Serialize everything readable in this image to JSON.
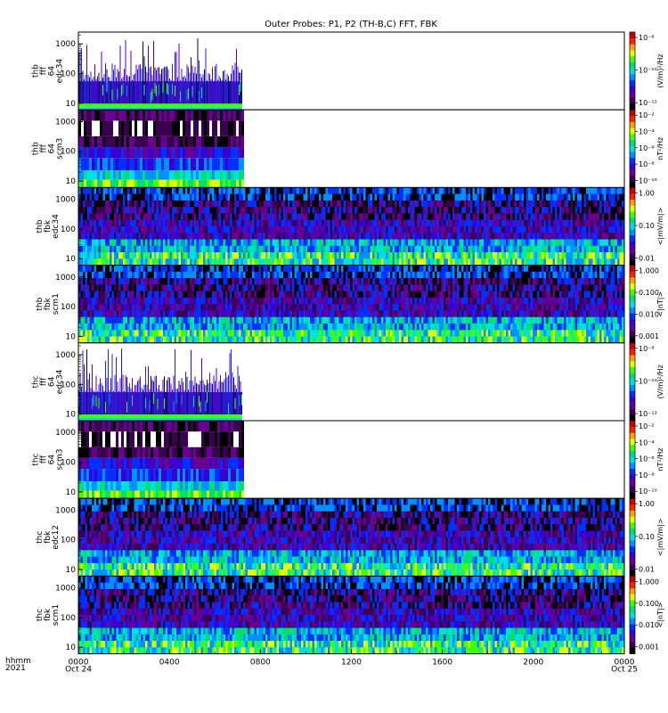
{
  "title": "Outer Probes: P1, P2 (TH-B,C) FFT, FBK",
  "x_axis": {
    "var_label_line1": "hhmm",
    "var_label_line2": "2021",
    "ticks": [
      {
        "hour": 0,
        "label": "0000",
        "sublabel": "Oct 24"
      },
      {
        "hour": 4,
        "label": "0400",
        "sublabel": ""
      },
      {
        "hour": 8,
        "label": "0800",
        "sublabel": ""
      },
      {
        "hour": 12,
        "label": "1200",
        "sublabel": ""
      },
      {
        "hour": 16,
        "label": "1600",
        "sublabel": ""
      },
      {
        "hour": 20,
        "label": "2000",
        "sublabel": ""
      },
      {
        "hour": 24,
        "label": "0000",
        "sublabel": "Oct 25"
      }
    ]
  },
  "colorbar_colors": [
    "#000000",
    "#3c0050",
    "#6a0090",
    "#3a00d0",
    "#0030ff",
    "#0090ff",
    "#00e0e0",
    "#00e070",
    "#40ff00",
    "#e0ff00",
    "#ffa000",
    "#ff2000",
    "#d00000"
  ],
  "chart_data": [
    {
      "type": "heatmap",
      "panel": "thb-fff-64-edc34",
      "ylabel": [
        "thb",
        "fff",
        "64",
        "edc34"
      ],
      "y_scale": "log",
      "y_ticks": [
        "10",
        "100",
        "1000"
      ],
      "x_range_hours": [
        0,
        24
      ],
      "data_end_hour": 7.2,
      "style": "spiky",
      "colorbar_ticks": [
        "10⁻⁸",
        "10⁻¹⁰",
        "10⁻¹²"
      ],
      "colorbar_label": "(V/m)²/Hz"
    },
    {
      "type": "heatmap",
      "panel": "thb-fff-64-scm3",
      "ylabel": [
        "thb",
        "fff",
        "64",
        "scm3"
      ],
      "y_scale": "log",
      "y_ticks": [
        "10",
        "100",
        "1000"
      ],
      "x_range_hours": [
        0,
        24
      ],
      "data_end_hour": 7.2,
      "style": "banded",
      "colorbar_ticks": [
        "10⁻²",
        "10⁻⁴",
        "10⁻⁶",
        "10⁻⁸",
        "10⁻¹⁰"
      ],
      "colorbar_label": "nT²/Hz"
    },
    {
      "type": "heatmap",
      "panel": "thb-fbk-edc34",
      "ylabel": [
        "thb",
        "fbk",
        "edc34"
      ],
      "y_scale": "log",
      "y_ticks": [
        "10",
        "100",
        "1000"
      ],
      "x_range_hours": [
        0,
        24
      ],
      "data_end_hour": 24,
      "style": "fbk",
      "colorbar_ticks": [
        "1.00",
        "0.10",
        "0.01"
      ],
      "colorbar_label": "<|mV/m|>"
    },
    {
      "type": "heatmap",
      "panel": "thb-fbk-scm1",
      "ylabel": [
        "thb",
        "fbk",
        "scm1"
      ],
      "y_scale": "log",
      "y_ticks": [
        "10",
        "100",
        "1000"
      ],
      "x_range_hours": [
        0,
        24
      ],
      "data_end_hour": 24,
      "style": "fbk",
      "colorbar_ticks": [
        "1.000",
        "0.100",
        "0.010",
        "0.001"
      ],
      "colorbar_label": "<|nT|>"
    },
    {
      "type": "heatmap",
      "panel": "thc-fff-64-edc34",
      "ylabel": [
        "thc",
        "fff",
        "64",
        "edc34"
      ],
      "y_scale": "log",
      "y_ticks": [
        "10",
        "100",
        "1000"
      ],
      "x_range_hours": [
        0,
        24
      ],
      "data_end_hour": 7.2,
      "style": "spiky",
      "colorbar_ticks": [
        "10⁻⁸",
        "10⁻¹⁰",
        "10⁻¹²"
      ],
      "colorbar_label": "(V/m)²/Hz"
    },
    {
      "type": "heatmap",
      "panel": "thc-fff-64-scm3",
      "ylabel": [
        "thc",
        "fff",
        "64",
        "scm3"
      ],
      "y_scale": "log",
      "y_ticks": [
        "10",
        "100",
        "1000"
      ],
      "x_range_hours": [
        0,
        24
      ],
      "data_end_hour": 7.2,
      "style": "banded",
      "colorbar_ticks": [
        "10⁻²",
        "10⁻⁴",
        "10⁻⁶",
        "10⁻⁸",
        "10⁻¹⁰"
      ],
      "colorbar_label": "nT²/Hz"
    },
    {
      "type": "heatmap",
      "panel": "thc-fbk-edc12",
      "ylabel": [
        "thc",
        "fbk",
        "edc12"
      ],
      "y_scale": "log",
      "y_ticks": [
        "10",
        "100",
        "1000"
      ],
      "x_range_hours": [
        0,
        24
      ],
      "data_end_hour": 24,
      "style": "fbk",
      "colorbar_ticks": [
        "1.00",
        "0.10",
        "0.01"
      ],
      "colorbar_label": "<|mV/m|>"
    },
    {
      "type": "heatmap",
      "panel": "thc-fbk-scm1",
      "ylabel": [
        "thc",
        "fbk",
        "scm1"
      ],
      "y_scale": "log",
      "y_ticks": [
        "10",
        "100",
        "1000"
      ],
      "x_range_hours": [
        0,
        24
      ],
      "data_end_hour": 24,
      "style": "fbk",
      "colorbar_ticks": [
        "1.000",
        "0.100",
        "0.010",
        "0.001"
      ],
      "colorbar_label": "<|nT|>"
    }
  ]
}
